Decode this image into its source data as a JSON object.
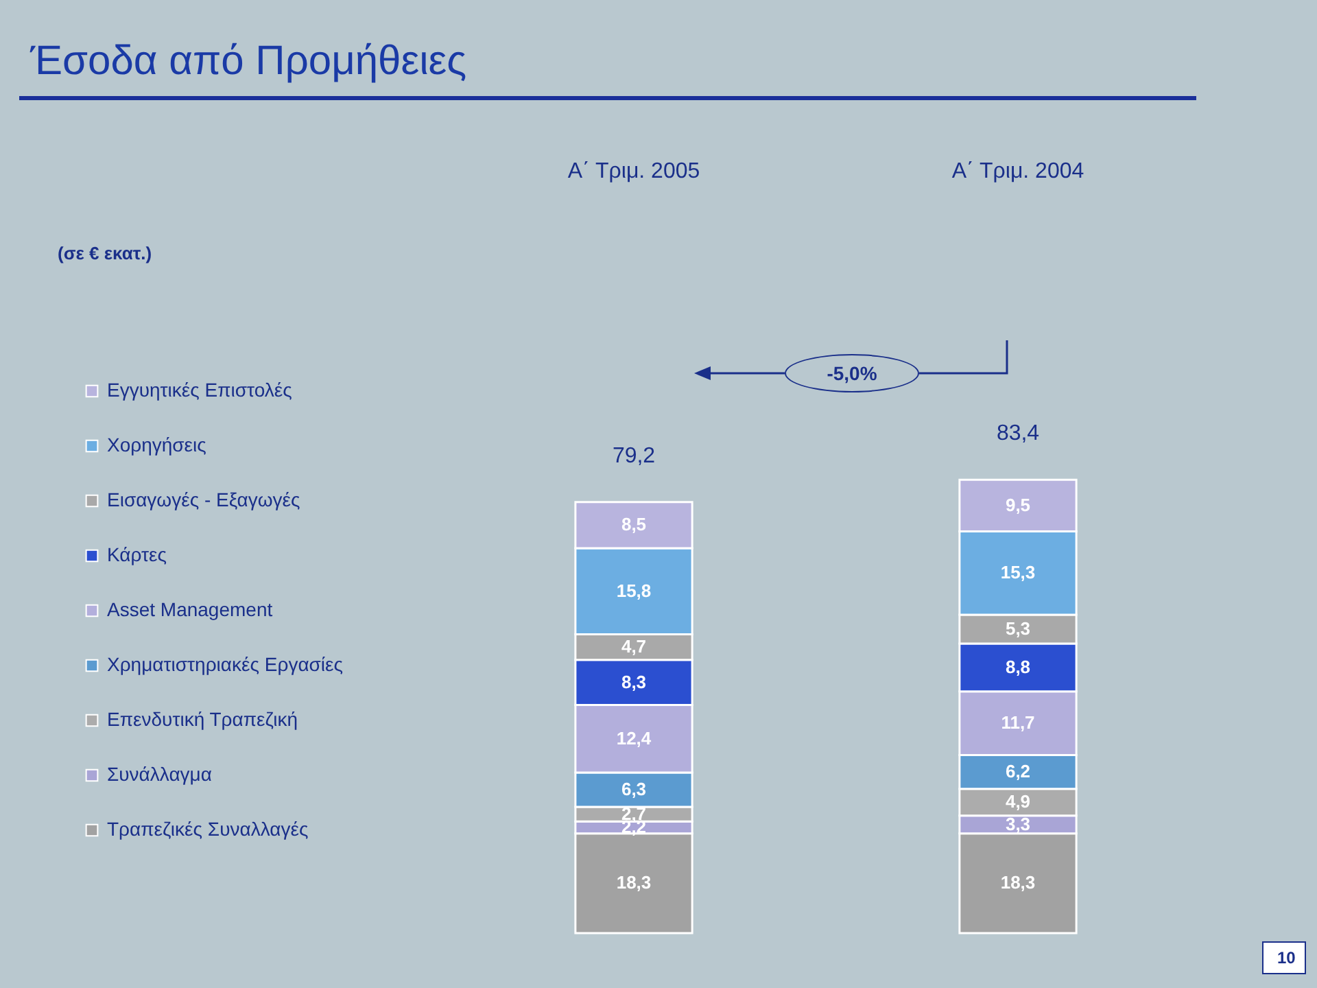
{
  "chart_data": {
    "type": "bar",
    "title": "Έσοδα από Προμήθειες",
    "stacked": true,
    "legend": "left",
    "categories": [
      "Α΄ Τριμ.  2005",
      "Α΄ Τριμ.  2004"
    ],
    "series": [
      {
        "name": "Τραπεζικές Συναλλαγές",
        "color": "#a2a2a2",
        "values": [
          18.3,
          18.3
        ],
        "value_labels": [
          "18,3",
          "18,3"
        ]
      },
      {
        "name": "Συνάλλαγμα",
        "color": "#a9a5d6",
        "values": [
          2.2,
          3.3
        ],
        "value_labels": [
          "2,2",
          "3,3"
        ]
      },
      {
        "name": "Επενδυτική Τραπεζική",
        "color": "#acacac",
        "values": [
          2.7,
          4.9
        ],
        "value_labels": [
          "2,7",
          "4,9"
        ]
      },
      {
        "name": "Χρηματιστηριακές Εργασίες",
        "color": "#5b9bd0",
        "values": [
          6.3,
          6.2
        ],
        "value_labels": [
          "6,3",
          "6,2"
        ]
      },
      {
        "name": "Asset Management",
        "color": "#b3afdc",
        "values": [
          12.4,
          11.7
        ],
        "value_labels": [
          "12,4",
          "11,7"
        ]
      },
      {
        "name": "Κάρτες",
        "color": "#2b4fd0",
        "values": [
          8.3,
          8.8
        ],
        "value_labels": [
          "8,3",
          "8,8"
        ]
      },
      {
        "name": "Εισαγωγές - Εξαγωγές",
        "color": "#a9a9a9",
        "values": [
          4.7,
          5.3
        ],
        "value_labels": [
          "4,7",
          "5,3"
        ]
      },
      {
        "name": "Χορηγήσεις",
        "color": "#6caee2",
        "values": [
          15.8,
          15.3
        ],
        "value_labels": [
          "15,8",
          "15,3"
        ]
      },
      {
        "name": "Εγγυητικές Επιστολές",
        "color": "#b8b4de",
        "values": [
          8.5,
          9.5
        ],
        "value_labels": [
          "8,5",
          "9,5"
        ]
      }
    ],
    "totals": [
      "79,2",
      "83,4"
    ],
    "annotations": [
      "(σε € εκατ.)",
      "-5,0%",
      "10"
    ]
  }
}
